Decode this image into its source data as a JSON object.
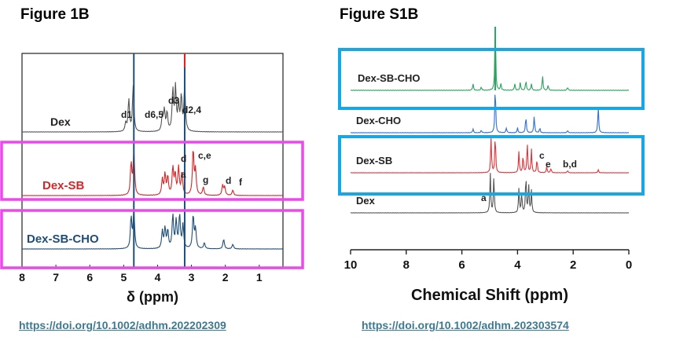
{
  "left": {
    "title": "Figure 1B",
    "link": "https://doi.org/10.1002/adhm.202202309",
    "xlabel": "δ (ppm)",
    "chart_data": {
      "type": "line",
      "title": "Figure 1B",
      "xlabel": "δ (ppm)",
      "ylabel": "",
      "xlim": [
        8,
        0.3
      ],
      "xreversed": true,
      "ticks": [
        "8",
        "7",
        "6",
        "5",
        "4",
        "3",
        "2",
        "1"
      ],
      "series": [
        {
          "name": "Dex",
          "color": "#555555",
          "peaks": [
            [
              4.94,
              0.18
            ],
            [
              4.85,
              0.7
            ],
            [
              4.72,
              1.0
            ],
            [
              3.86,
              0.35
            ],
            [
              3.8,
              0.45
            ],
            [
              3.72,
              0.4
            ],
            [
              3.55,
              0.9
            ],
            [
              3.47,
              0.95
            ],
            [
              3.38,
              0.55
            ],
            [
              3.3,
              0.75
            ],
            [
              3.2,
              1.0
            ]
          ]
        },
        {
          "name": "Dex-SB",
          "color": "#d62728",
          "peaks": [
            [
              4.78,
              0.7
            ],
            [
              4.7,
              0.95
            ],
            [
              3.86,
              0.35
            ],
            [
              3.78,
              0.45
            ],
            [
              3.7,
              0.4
            ],
            [
              3.55,
              0.6
            ],
            [
              3.48,
              0.45
            ],
            [
              3.38,
              0.6
            ],
            [
              3.28,
              0.5
            ],
            [
              2.95,
              1.0
            ],
            [
              2.88,
              0.55
            ],
            [
              2.65,
              0.18
            ],
            [
              2.08,
              0.22
            ],
            [
              2.02,
              0.18
            ],
            [
              1.78,
              0.12
            ]
          ]
        },
        {
          "name": "Dex-SB-CHO",
          "color": "#1f4e79",
          "peaks": [
            [
              4.78,
              0.8
            ],
            [
              4.7,
              0.95
            ],
            [
              3.86,
              0.45
            ],
            [
              3.78,
              0.5
            ],
            [
              3.7,
              0.45
            ],
            [
              3.55,
              0.85
            ],
            [
              3.45,
              0.7
            ],
            [
              3.35,
              0.85
            ],
            [
              3.25,
              0.6
            ],
            [
              2.95,
              0.85
            ],
            [
              2.88,
              0.5
            ],
            [
              2.62,
              0.15
            ],
            [
              2.05,
              0.25
            ],
            [
              1.78,
              0.12
            ]
          ]
        }
      ],
      "annotations": [
        {
          "text": "d1",
          "series": "Dex",
          "x": 5.15
        },
        {
          "text": "d6,5",
          "series": "Dex",
          "x": 4.2
        },
        {
          "text": "d3",
          "series": "Dex",
          "x": 3.55
        },
        {
          "text": "d2,4",
          "series": "Dex",
          "x": 3.05
        },
        {
          "text": "d",
          "series": "Dex-SB",
          "x": 3.4
        },
        {
          "text": "c,e",
          "series": "Dex-SB",
          "x": 2.7
        },
        {
          "text": "a",
          "series": "Dex-SB",
          "x": 3.35
        },
        {
          "text": "g",
          "series": "Dex-SB",
          "x": 2.6
        },
        {
          "text": "d",
          "series": "Dex-SB",
          "x": 2.05
        },
        {
          "text": "f",
          "series": "Dex-SB",
          "x": 1.7
        }
      ]
    }
  },
  "right": {
    "title": "Figure S1B",
    "link": "https://doi.org/10.1002/adhm.202303574",
    "xlabel": "Chemical Shift (ppm)",
    "chart_data": {
      "type": "line",
      "title": "Figure S1B",
      "xlabel": "Chemical Shift (ppm)",
      "ylabel": "",
      "xlim": [
        10,
        0
      ],
      "xreversed": true,
      "ticks": [
        "10",
        "8",
        "6",
        "4",
        "2",
        "0"
      ],
      "series": [
        {
          "name": "Dex-SB-CHO",
          "color": "#2ca25f",
          "peaks": [
            [
              4.8,
              1.0
            ],
            [
              5.6,
              0.1
            ],
            [
              5.3,
              0.05
            ],
            [
              4.6,
              0.1
            ],
            [
              4.1,
              0.1
            ],
            [
              3.9,
              0.12
            ],
            [
              3.7,
              0.15
            ],
            [
              3.5,
              0.1
            ],
            [
              3.1,
              0.22
            ],
            [
              2.9,
              0.08
            ],
            [
              2.2,
              0.05
            ]
          ]
        },
        {
          "name": "Dex-CHO",
          "color": "#2f6fd6",
          "peaks": [
            [
              5.6,
              0.08
            ],
            [
              5.3,
              0.05
            ],
            [
              4.8,
              1.0
            ],
            [
              4.4,
              0.1
            ],
            [
              4.0,
              0.1
            ],
            [
              3.7,
              0.35
            ],
            [
              3.4,
              0.35
            ],
            [
              3.2,
              0.1
            ],
            [
              2.2,
              0.05
            ],
            [
              1.1,
              0.55
            ]
          ]
        },
        {
          "name": "Dex-SB",
          "color": "#e0333a",
          "peaks": [
            [
              4.95,
              0.9
            ],
            [
              4.8,
              1.0
            ],
            [
              3.95,
              0.55
            ],
            [
              3.8,
              0.45
            ],
            [
              3.65,
              0.8
            ],
            [
              3.5,
              0.6
            ],
            [
              3.3,
              0.35
            ],
            [
              2.95,
              0.15
            ],
            [
              2.8,
              0.12
            ],
            [
              2.2,
              0.06
            ],
            [
              1.1,
              0.08
            ]
          ]
        },
        {
          "name": "Dex",
          "color": "#555555",
          "peaks": [
            [
              4.98,
              1.0
            ],
            [
              4.85,
              0.95
            ],
            [
              3.95,
              0.6
            ],
            [
              3.85,
              0.5
            ],
            [
              3.7,
              0.95
            ],
            [
              3.6,
              0.7
            ],
            [
              3.5,
              0.55
            ]
          ]
        }
      ],
      "annotations": [
        {
          "text": "c",
          "series": "Dex-SB",
          "x": 3.1
        },
        {
          "text": "e",
          "series": "Dex-SB",
          "x": 2.85
        },
        {
          "text": "b,d",
          "series": "Dex-SB",
          "x": 2.1
        },
        {
          "text": "a",
          "series": "Dex",
          "x": 5.2
        }
      ]
    }
  },
  "highlights": {
    "magenta": "#ec48ec",
    "cyan": "#16a7e6"
  }
}
